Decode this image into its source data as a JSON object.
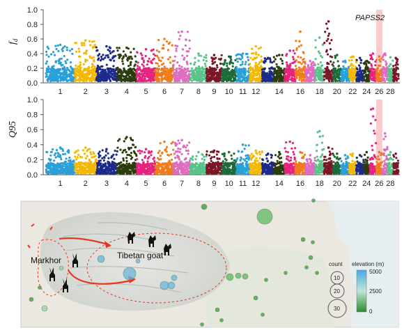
{
  "chart_data": [
    {
      "type": "scatter",
      "subtype": "manhattan",
      "ylabel": "fd",
      "ylabel_main": "f",
      "ylabel_sub": "d",
      "ylim": [
        0,
        1.0
      ],
      "yticks": [
        "0.0",
        "0.2",
        "0.4",
        "0.6",
        "0.8",
        "1.0"
      ],
      "chromosome_labels": [
        "1",
        "2",
        "3",
        "4",
        "5",
        "6",
        "7",
        "8",
        "9",
        "10",
        "11",
        "12",
        "14",
        "16",
        "18",
        "20",
        "22",
        "24",
        "26",
        "28"
      ],
      "highlight_chromosome": "26",
      "highlight_gene": "PAPSS2",
      "chromosome_max": [
        0.52,
        0.58,
        0.5,
        0.48,
        0.46,
        0.6,
        0.7,
        0.4,
        0.38,
        0.36,
        0.4,
        0.5,
        0.34,
        0.38,
        0.44,
        0.7,
        0.3,
        0.62,
        0.84,
        0.38,
        0.3,
        0.36,
        0.34,
        0.3,
        0.4,
        0.36,
        0.4,
        0.35,
        0.34
      ]
    },
    {
      "type": "scatter",
      "subtype": "manhattan",
      "ylabel": "Q95",
      "ylim": [
        0,
        1.0
      ],
      "yticks": [
        "0.0",
        "0.2",
        "0.4",
        "0.6",
        "0.8",
        "1.0"
      ],
      "chromosome_labels": [
        "1",
        "2",
        "3",
        "4",
        "5",
        "6",
        "7",
        "8",
        "9",
        "10",
        "11",
        "12",
        "14",
        "16",
        "18",
        "20",
        "22",
        "24",
        "26",
        "28"
      ],
      "highlight_chromosome": "26",
      "chromosome_max": [
        0.36,
        0.36,
        0.34,
        0.5,
        0.34,
        0.44,
        0.46,
        0.3,
        0.32,
        0.3,
        0.4,
        0.32,
        0.28,
        0.3,
        0.44,
        0.3,
        0.26,
        0.58,
        0.36,
        0.28,
        0.26,
        0.28,
        0.26,
        0.3,
        0.88,
        0.3,
        0.55,
        0.3,
        0.28
      ]
    }
  ],
  "map": {
    "label_markhor": "Markhor",
    "label_tibetan": "Tibetan goat",
    "legend": {
      "count_title": "count",
      "count_values": [
        "10",
        "20",
        "30"
      ],
      "elevation_title": "elevation (m)",
      "elevation_high": "5000",
      "elevation_mid": "2500",
      "elevation_low": "0"
    },
    "colors": {
      "blue_point": "#69b6df",
      "green_point": "#3a9a3a",
      "arrow": "#e8361c"
    }
  }
}
